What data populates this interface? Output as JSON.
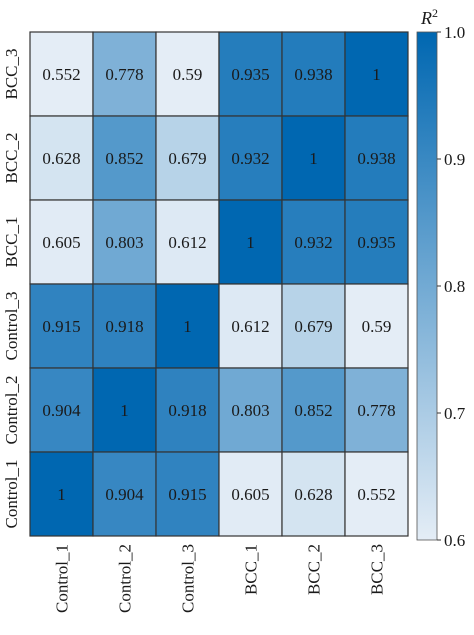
{
  "chart_data": {
    "type": "heatmap",
    "rows": [
      "BCC_3",
      "BCC_2",
      "BCC_1",
      "Control_3",
      "Control_2",
      "Control_1"
    ],
    "columns": [
      "Control_1",
      "Control_2",
      "Control_3",
      "BCC_1",
      "BCC_2",
      "BCC_3"
    ],
    "value_labels": [
      [
        "0.552",
        "0.778",
        "0.59",
        "0.935",
        "0.938",
        "1"
      ],
      [
        "0.628",
        "0.852",
        "0.679",
        "0.932",
        "1",
        "0.938"
      ],
      [
        "0.605",
        "0.803",
        "0.612",
        "1",
        "0.932",
        "0.935"
      ],
      [
        "0.915",
        "0.918",
        "1",
        "0.612",
        "0.679",
        "0.59"
      ],
      [
        "0.904",
        "1",
        "0.918",
        "0.803",
        "0.852",
        "0.778"
      ],
      [
        "1",
        "0.904",
        "0.915",
        "0.605",
        "0.628",
        "0.552"
      ]
    ],
    "values": [
      [
        0.552,
        0.778,
        0.59,
        0.935,
        0.938,
        1
      ],
      [
        0.628,
        0.852,
        0.679,
        0.932,
        1,
        0.938
      ],
      [
        0.605,
        0.803,
        0.612,
        1,
        0.932,
        0.935
      ],
      [
        0.915,
        0.918,
        1,
        0.612,
        0.679,
        0.59
      ],
      [
        0.904,
        1,
        0.918,
        0.803,
        0.852,
        0.778
      ],
      [
        1,
        0.904,
        0.915,
        0.605,
        0.628,
        0.552
      ]
    ],
    "colorbar": {
      "title": "R",
      "title_superscript": "2",
      "range": [
        0.6,
        1.0
      ],
      "ticks": [
        1.0,
        0.9,
        0.8,
        0.7,
        0.6
      ],
      "tick_labels": [
        "1.0",
        "0.9",
        "0.8",
        "0.7",
        "0.6"
      ],
      "low_color": "#e4edf6",
      "high_color": "#0067b1"
    },
    "grid": true,
    "legend_placement": "right"
  }
}
